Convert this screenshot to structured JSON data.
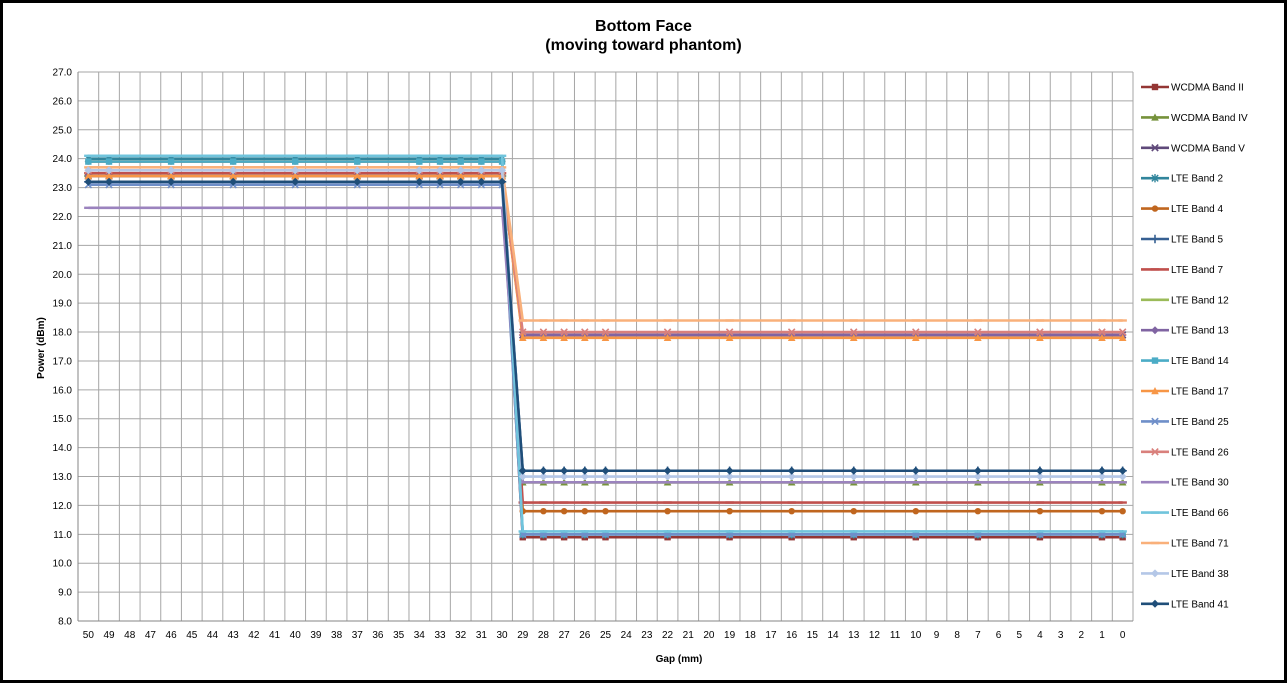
{
  "chart_data": {
    "type": "line",
    "title": "Bottom Face",
    "subtitle": "(moving toward phantom)",
    "xlabel": "Gap (mm)",
    "ylabel": "Power (dBm)",
    "x_ticks": [
      50,
      49,
      48,
      47,
      46,
      45,
      44,
      43,
      42,
      41,
      40,
      39,
      38,
      37,
      36,
      35,
      34,
      33,
      32,
      31,
      30,
      29,
      28,
      27,
      26,
      25,
      24,
      23,
      22,
      21,
      20,
      19,
      18,
      17,
      16,
      15,
      14,
      13,
      12,
      11,
      10,
      9,
      8,
      7,
      6,
      5,
      4,
      3,
      2,
      1,
      0
    ],
    "x_reversed": true,
    "ylim": [
      8.0,
      27.0
    ],
    "y_ticks": [
      "8.0",
      "9.0",
      "10.0",
      "11.0",
      "12.0",
      "13.0",
      "14.0",
      "15.0",
      "16.0",
      "17.0",
      "18.0",
      "19.0",
      "20.0",
      "21.0",
      "22.0",
      "23.0",
      "24.0",
      "25.0",
      "26.0",
      "27.0"
    ],
    "grid": true,
    "legend_position": "right",
    "x_markers": [
      50,
      49,
      46,
      43,
      40,
      37,
      34,
      33,
      32,
      31,
      30,
      29,
      28,
      27,
      26,
      25,
      22,
      19,
      16,
      13,
      10,
      7,
      4,
      1,
      0
    ],
    "series": [
      {
        "name": "WCDMA Band II",
        "color": "#943634",
        "marker": "square",
        "high": 23.4,
        "low": 10.9
      },
      {
        "name": "WCDMA Band IV",
        "color": "#76923c",
        "marker": "triangle",
        "high": 23.4,
        "low": 12.8
      },
      {
        "name": "WCDMA Band V",
        "color": "#5f497a",
        "marker": "x",
        "high": 23.4,
        "low": 17.9
      },
      {
        "name": "LTE Band 2",
        "color": "#31859c",
        "marker": "star",
        "high": 24.0,
        "low": 11.0
      },
      {
        "name": "LTE Band 4",
        "color": "#c0661f",
        "marker": "circle",
        "high": 23.9,
        "low": 11.8
      },
      {
        "name": "LTE Band 5",
        "color": "#376092",
        "marker": "plus",
        "high": 23.2,
        "low": 13.2
      },
      {
        "name": "LTE Band 7",
        "color": "#c0504d",
        "marker": "dash",
        "high": 23.5,
        "low": 12.1
      },
      {
        "name": "LTE Band 12",
        "color": "#9bbb59",
        "marker": "dash",
        "high": 23.4,
        "low": 12.8
      },
      {
        "name": "LTE Band 13",
        "color": "#8064a2",
        "marker": "diamond",
        "high": 23.4,
        "low": 17.9
      },
      {
        "name": "LTE Band 14",
        "color": "#4bacc6",
        "marker": "square",
        "high": 23.9,
        "low": 11.0
      },
      {
        "name": "LTE Band 17",
        "color": "#f79646",
        "marker": "triangle",
        "high": 23.4,
        "low": 17.8
      },
      {
        "name": "LTE Band 25",
        "color": "#6f8fc9",
        "marker": "x",
        "high": 23.1,
        "low": 11.0
      },
      {
        "name": "LTE Band 26",
        "color": "#d9807c",
        "marker": "x",
        "high": 23.6,
        "low": 18.0
      },
      {
        "name": "LTE Band 30",
        "color": "#9b83be",
        "marker": "dash",
        "high": 22.3,
        "low": 12.8
      },
      {
        "name": "LTE Band 66",
        "color": "#70c4dc",
        "marker": "dash",
        "high": 24.1,
        "low": 11.1
      },
      {
        "name": "LTE Band 71",
        "color": "#f9b07a",
        "marker": "dash",
        "high": 23.7,
        "low": 18.4
      },
      {
        "name": "LTE Band 38",
        "color": "#b4c7e7",
        "marker": "diamond",
        "high": 23.6,
        "low": 13.0
      },
      {
        "name": "LTE Band 41",
        "color": "#1f4e79",
        "marker": "diamond",
        "high": 23.2,
        "low": 13.2
      }
    ]
  }
}
